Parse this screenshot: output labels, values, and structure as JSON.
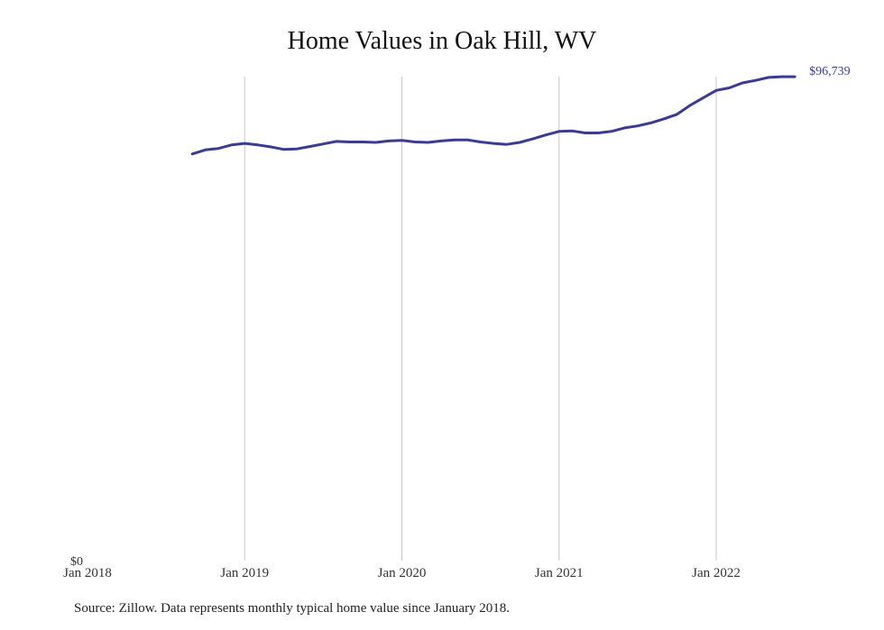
{
  "chart_data": {
    "type": "line",
    "title": "Home Values in Oak Hill, WV",
    "xlabel": "",
    "ylabel": "",
    "x_tick_labels": [
      "Jan 2018",
      "Jan 2019",
      "Jan 2020",
      "Jan 2021",
      "Jan 2022"
    ],
    "y_tick_labels": [
      "$0"
    ],
    "ylim": [
      0,
      100000
    ],
    "grid": "vertical",
    "line_color": "#3a3a9e",
    "end_label": "$96,739",
    "series": [
      {
        "x": [
          "2018-09",
          "2018-10",
          "2018-11",
          "2018-12",
          "2019-01",
          "2019-02",
          "2019-03",
          "2019-04",
          "2019-05",
          "2019-06",
          "2019-07",
          "2019-08",
          "2019-09",
          "2019-10",
          "2019-11",
          "2019-12",
          "2020-01",
          "2020-02",
          "2020-03",
          "2020-04",
          "2020-05",
          "2020-06",
          "2020-07",
          "2020-08",
          "2020-09",
          "2020-10",
          "2020-11",
          "2020-12",
          "2021-01",
          "2021-02",
          "2021-03",
          "2021-04",
          "2021-05",
          "2021-06",
          "2021-07",
          "2021-08",
          "2021-09",
          "2021-10",
          "2021-11",
          "2021-12",
          "2022-01",
          "2022-02",
          "2022-03",
          "2022-04",
          "2022-05",
          "2022-06",
          "2022-07"
        ],
        "y": [
          81300,
          82100,
          82400,
          83100,
          83400,
          83100,
          82700,
          82200,
          82300,
          82800,
          83300,
          83800,
          83700,
          83700,
          83600,
          83900,
          84000,
          83700,
          83600,
          83900,
          84100,
          84100,
          83700,
          83400,
          83200,
          83600,
          84300,
          85100,
          85800,
          85900,
          85500,
          85500,
          85800,
          86500,
          86900,
          87500,
          88300,
          89200,
          91000,
          92500,
          94000,
          94500,
          95500,
          96000,
          96600,
          96739,
          96739
        ]
      }
    ]
  },
  "source_note": "Source: Zillow. Data represents monthly typical home value since January 2018."
}
